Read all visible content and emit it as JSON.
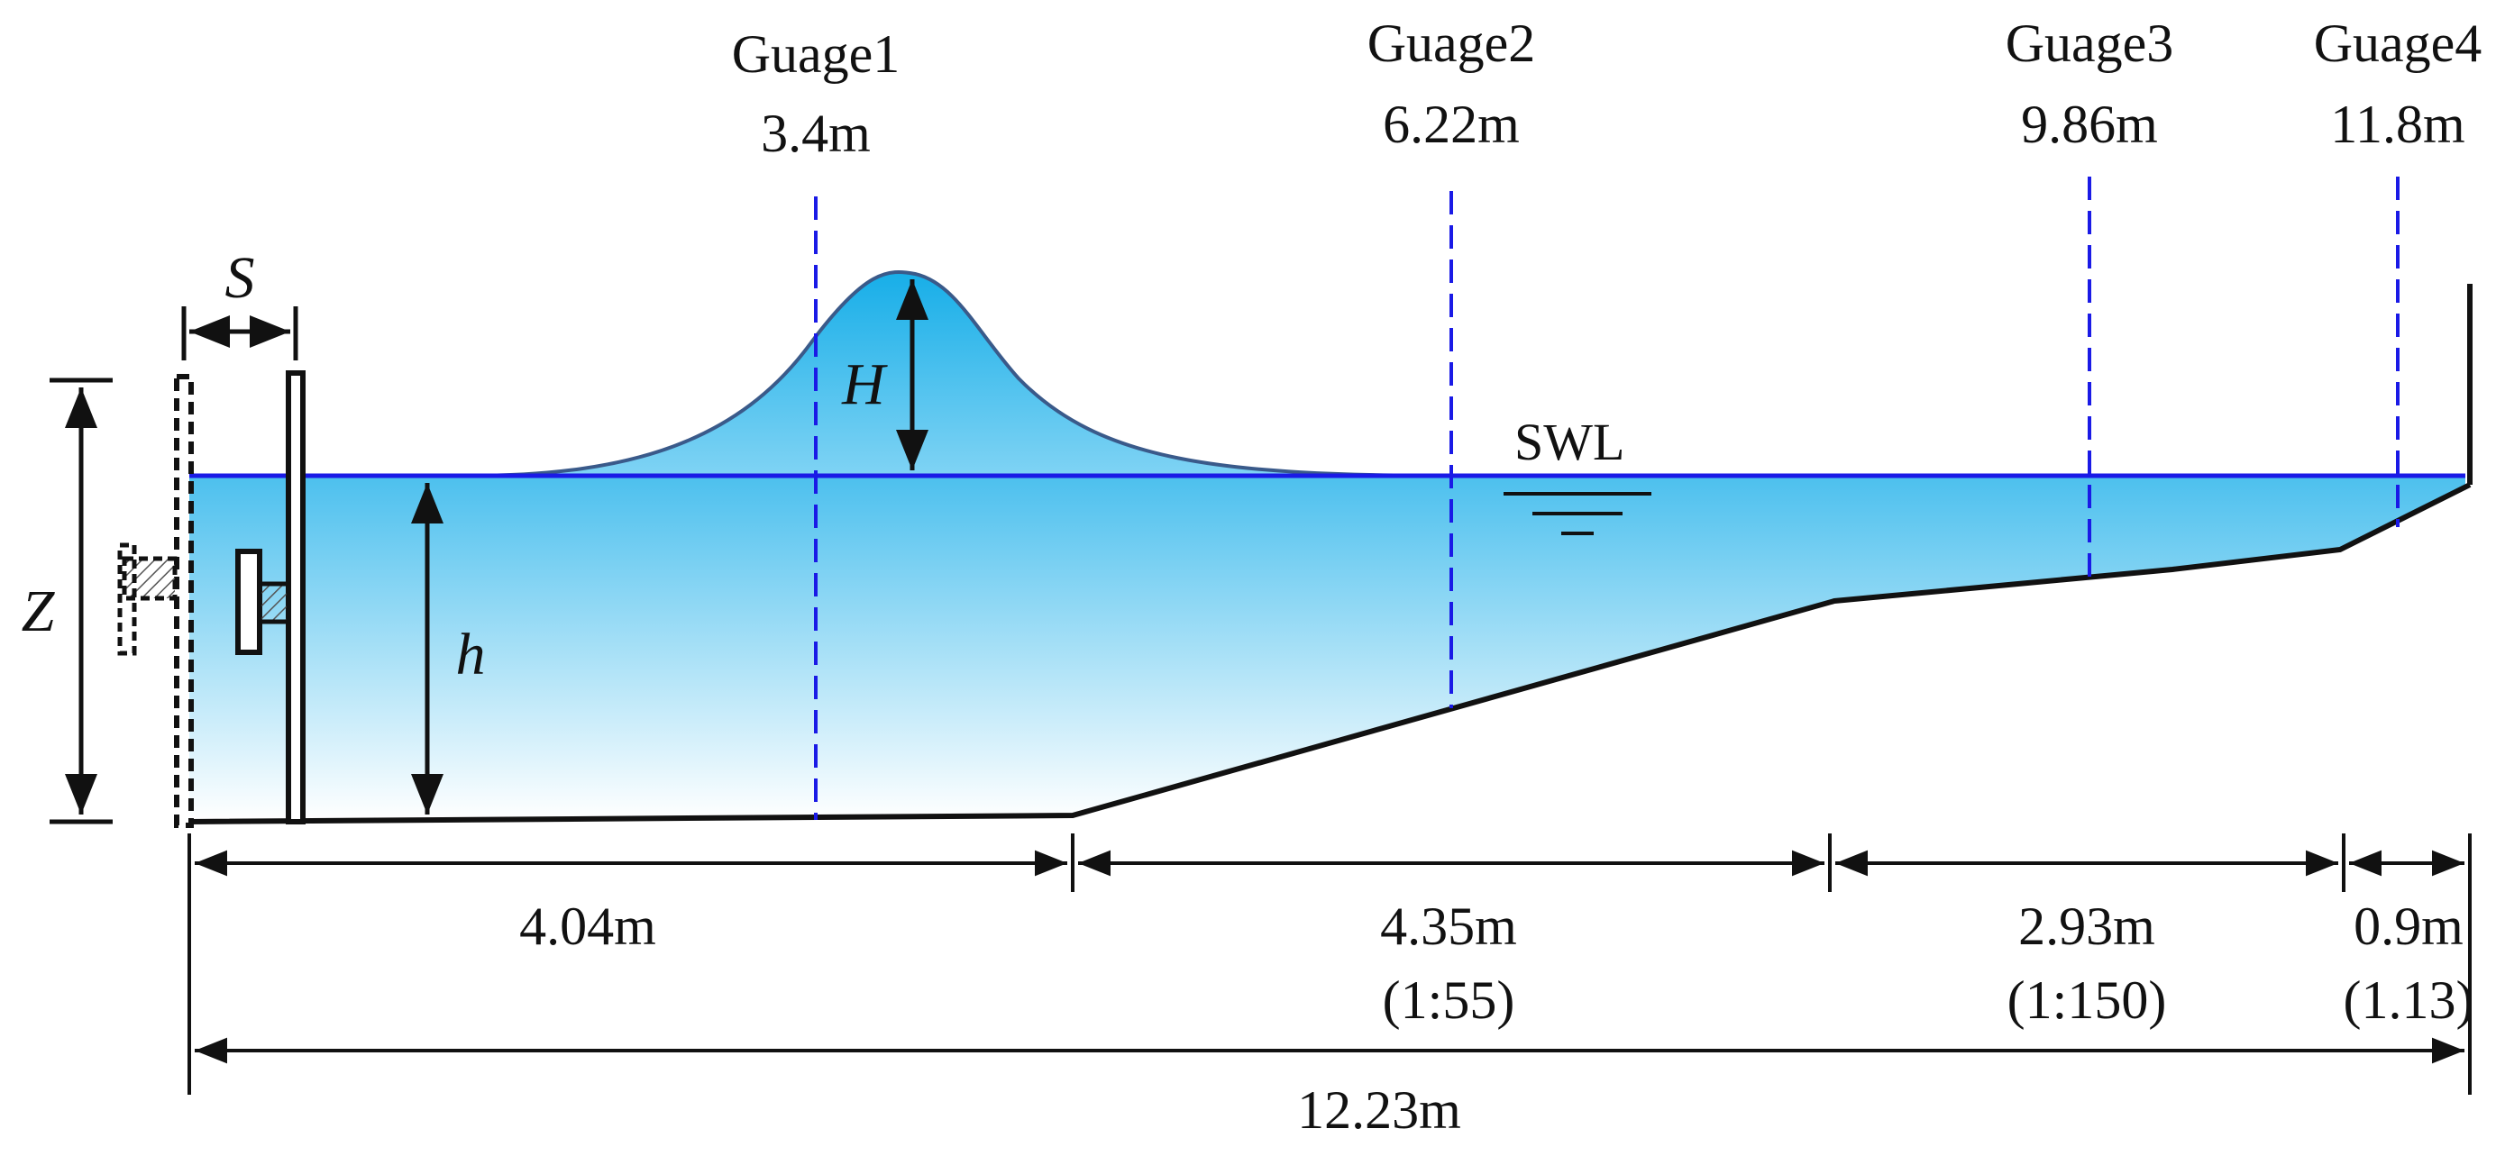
{
  "gauges": [
    {
      "name": "Guage1",
      "distance": "3.4m"
    },
    {
      "name": "Guage2",
      "distance": "6.22m"
    },
    {
      "name": "Guage3",
      "distance": "9.86m"
    },
    {
      "name": "Guage4",
      "distance": "11.8m"
    }
  ],
  "symbols": {
    "stroke": "S",
    "wave_height": "H",
    "depth": "h",
    "paddle_height": "Z",
    "still_water": "SWL"
  },
  "segments": [
    {
      "length": "4.04m",
      "slope": ""
    },
    {
      "length": "4.35m",
      "slope": "(1:55)"
    },
    {
      "length": "2.93m",
      "slope": "(1:150)"
    },
    {
      "length": "0.9m",
      "slope": "(1.13)"
    }
  ],
  "total_length": "12.23m",
  "colors": {
    "water_top": "#4cc0ee",
    "water_bottom": "#ffffff",
    "wave_top": "#17aee8",
    "gauge_line": "#1a1ae6",
    "swl_line": "#1a1ae6",
    "outline": "#111111"
  }
}
